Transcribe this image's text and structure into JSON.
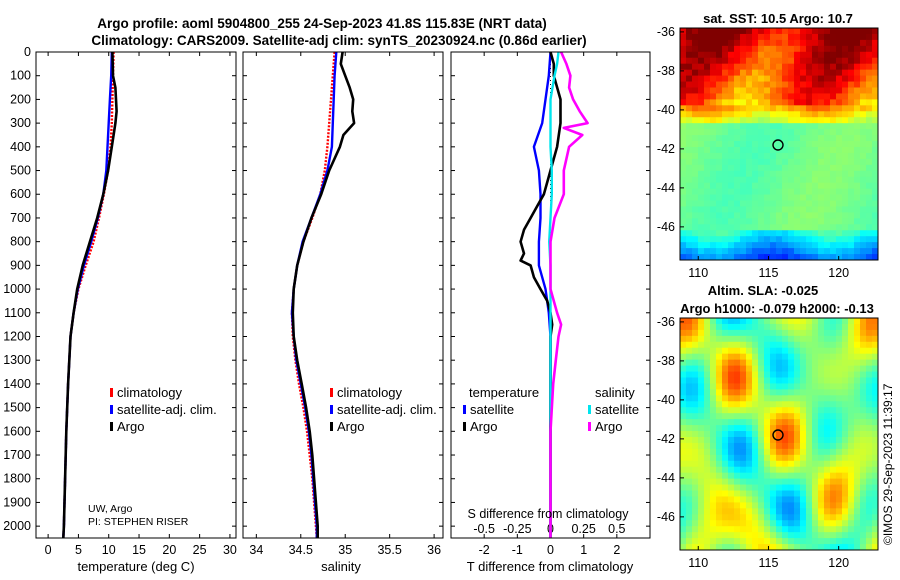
{
  "header": {
    "title_line1": "Argo profile: aoml 5904800_255 24-Sep-2023 41.8S 115.83E (NRT data)",
    "title_line2": "Climatology: CARS2009. Satellite-adj clim: synTS_20230924.nc (0.86d earlier)"
  },
  "colors": {
    "climatology": "#ff0000",
    "satellite": "#0000ff",
    "argo": "#000000",
    "sat_salinity": "#00e5ee",
    "argo_salinity": "#ff00ff"
  },
  "depth_axis": {
    "ticks": [
      "0",
      "100",
      "200",
      "300",
      "400",
      "500",
      "600",
      "700",
      "800",
      "900",
      "1000",
      "1100",
      "1200",
      "1300",
      "1400",
      "1500",
      "1600",
      "1700",
      "1800",
      "1900",
      "2000"
    ]
  },
  "credits": {
    "line1": "UW, Argo",
    "line2": "PI: STEPHEN RISER"
  },
  "timestamp": "©IMOS 29-Sep-2023 11:39:17",
  "chart_data": [
    {
      "type": "line",
      "id": "temperature",
      "xlabel": "temperature (deg C)",
      "xlim": [
        -2,
        31
      ],
      "ylim": [
        2050,
        0
      ],
      "xticks": [
        "0",
        "5",
        "10",
        "15",
        "20",
        "25",
        "30"
      ],
      "legend": [
        "climatology",
        "satellite-adj. clim.",
        "Argo"
      ],
      "series": [
        {
          "name": "climatology",
          "depth": [
            0,
            100,
            200,
            300,
            400,
            500,
            600,
            700,
            800,
            900,
            1000,
            1100,
            1200,
            1400,
            1600,
            1800,
            2000,
            2050
          ],
          "values": [
            10.8,
            10.7,
            10.6,
            10.5,
            10.3,
            9.9,
            9.2,
            8.4,
            7.5,
            6.2,
            5.0,
            4.2,
            3.7,
            3.3,
            3.0,
            2.8,
            2.6,
            2.5
          ]
        },
        {
          "name": "satellite-adj. clim.",
          "depth": [
            0,
            100,
            200,
            300,
            400,
            500,
            600,
            700,
            800,
            900,
            1000,
            1100,
            1200,
            1400,
            1600,
            1800,
            2000,
            2050
          ],
          "values": [
            10.5,
            10.4,
            10.2,
            10.0,
            9.8,
            9.6,
            9.1,
            8.2,
            7.1,
            5.9,
            4.9,
            4.2,
            3.7,
            3.3,
            3.0,
            2.8,
            2.6,
            2.5
          ]
        },
        {
          "name": "Argo",
          "depth": [
            0,
            100,
            150,
            200,
            250,
            300,
            350,
            400,
            500,
            600,
            700,
            800,
            900,
            1000,
            1100,
            1200,
            1400,
            1600,
            1800,
            2000,
            2050
          ],
          "values": [
            10.6,
            10.7,
            11.1,
            11.2,
            11.3,
            11.1,
            10.8,
            10.5,
            9.9,
            9.1,
            8.1,
            6.9,
            5.7,
            4.8,
            4.2,
            3.7,
            3.3,
            3.0,
            2.8,
            2.6,
            2.5
          ]
        }
      ]
    },
    {
      "type": "line",
      "id": "salinity",
      "xlabel": "salinity",
      "xlim": [
        33.85,
        36.1
      ],
      "ylim": [
        2050,
        0
      ],
      "xticks": [
        "34",
        "34.5",
        "35",
        "35.5",
        "36"
      ],
      "legend": [
        "climatology",
        "satellite-adj. clim.",
        "Argo"
      ],
      "series": [
        {
          "name": "climatology",
          "depth": [
            0,
            100,
            200,
            300,
            400,
            500,
            600,
            700,
            800,
            900,
            1000,
            1100,
            1200,
            1300,
            1400,
            1500,
            1600,
            1700,
            1800,
            1900,
            2000,
            2050
          ],
          "values": [
            34.88,
            34.86,
            34.84,
            34.82,
            34.8,
            34.77,
            34.72,
            34.63,
            34.53,
            34.46,
            34.42,
            34.4,
            34.41,
            34.44,
            34.48,
            34.53,
            34.57,
            34.6,
            34.63,
            34.65,
            34.67,
            34.68
          ]
        },
        {
          "name": "satellite-adj. clim.",
          "depth": [
            0,
            100,
            200,
            300,
            400,
            500,
            600,
            700,
            800,
            900,
            1000,
            1100,
            1200,
            1300,
            1400,
            1500,
            1600,
            1700,
            1800,
            1900,
            2000,
            2050
          ],
          "values": [
            34.9,
            34.88,
            34.87,
            34.86,
            34.85,
            34.8,
            34.72,
            34.62,
            34.52,
            34.46,
            34.42,
            34.4,
            34.42,
            34.45,
            34.5,
            34.55,
            34.59,
            34.62,
            34.64,
            34.66,
            34.68,
            34.68
          ]
        },
        {
          "name": "Argo",
          "depth": [
            0,
            50,
            100,
            150,
            200,
            250,
            300,
            350,
            400,
            500,
            600,
            700,
            800,
            900,
            1000,
            1100,
            1200,
            1300,
            1400,
            1500,
            1600,
            1700,
            1800,
            1900,
            2000,
            2050
          ],
          "values": [
            34.97,
            34.95,
            35.0,
            35.05,
            35.09,
            35.08,
            35.1,
            34.98,
            34.94,
            34.82,
            34.73,
            34.62,
            34.53,
            34.46,
            34.42,
            34.41,
            34.42,
            34.46,
            34.51,
            34.56,
            34.6,
            34.63,
            34.65,
            34.67,
            34.69,
            34.69
          ]
        }
      ]
    },
    {
      "type": "line",
      "id": "difference",
      "xlabel": "T difference from climatology",
      "xlabel_top": "S difference from climatology",
      "xlim": [
        -3,
        3
      ],
      "ylim": [
        2050,
        0
      ],
      "xticks": [
        "-2",
        "-1",
        "0",
        "1",
        "2"
      ],
      "xticks_top": [
        "-0.5",
        "-0.25",
        "0",
        "0.25",
        "0.5"
      ],
      "legend_temperature": {
        "title": "temperature",
        "items": [
          "satellite",
          "Argo"
        ]
      },
      "legend_salinity": {
        "title": "salinity",
        "items": [
          "satellite",
          "Argo"
        ]
      },
      "series": [
        {
          "name": "temperature satellite",
          "depth": [
            0,
            100,
            200,
            300,
            400,
            500,
            600,
            700,
            800,
            900,
            1000,
            1100,
            1200,
            1400,
            1600,
            1800,
            2000,
            2050
          ],
          "values": [
            0.0,
            -0.05,
            -0.15,
            -0.25,
            -0.5,
            -0.35,
            -0.3,
            -0.3,
            -0.35,
            -0.35,
            -0.15,
            -0.05,
            0.0,
            0.0,
            0.0,
            0.0,
            0.0,
            0.0
          ]
        },
        {
          "name": "temperature Argo",
          "depth": [
            0,
            50,
            100,
            200,
            300,
            400,
            500,
            600,
            650,
            700,
            750,
            800,
            850,
            880,
            900,
            950,
            1000,
            1050,
            1100,
            1150,
            1200,
            1300,
            1400,
            1600,
            1800,
            2000,
            2050
          ],
          "values": [
            0.0,
            0.1,
            0.1,
            0.3,
            0.3,
            0.2,
            0.0,
            -0.2,
            -0.4,
            -0.6,
            -0.8,
            -0.9,
            -0.8,
            -0.9,
            -0.6,
            -0.5,
            -0.3,
            -0.1,
            0.0,
            0.05,
            0.0,
            0.0,
            0.0,
            0.0,
            0.0,
            0.0,
            0.0
          ]
        },
        {
          "name": "salinity satellite",
          "depth": [
            0,
            50,
            100,
            200,
            300,
            400,
            500,
            600,
            700,
            800,
            900,
            1000,
            1100,
            1200,
            1400,
            1600,
            1800,
            2000,
            2050
          ],
          "values": [
            0.06,
            0.05,
            0.03,
            0.0,
            0.0,
            0.0,
            0.01,
            0.01,
            0.0,
            -0.01,
            0.0,
            0.0,
            0.0,
            0.0,
            0.0,
            0.0,
            0.0,
            0.0,
            0.0
          ]
        },
        {
          "name": "salinity Argo",
          "depth": [
            0,
            50,
            100,
            150,
            200,
            250,
            300,
            320,
            350,
            400,
            500,
            600,
            700,
            800,
            900,
            1000,
            1100,
            1150,
            1200,
            1300,
            1400,
            1600,
            1800,
            2000,
            2050
          ],
          "values": [
            0.08,
            0.12,
            0.15,
            0.14,
            0.17,
            0.22,
            0.28,
            0.1,
            0.24,
            0.14,
            0.1,
            0.1,
            0.03,
            0.0,
            0.0,
            0.0,
            0.05,
            0.08,
            0.06,
            0.04,
            0.02,
            0.0,
            0.0,
            0.0,
            0.0
          ]
        }
      ]
    },
    {
      "type": "heatmap",
      "id": "sst_map",
      "title": "sat. SST: 10.5 Argo: 10.7",
      "xticks": [
        "110",
        "115",
        "120"
      ],
      "yticks": [
        "-36",
        "-38",
        "-40",
        "-42",
        "-44",
        "-46"
      ],
      "xlim": [
        108.7,
        122.8
      ],
      "ylim": [
        -47.7,
        -35.8
      ],
      "marker": {
        "lon": 115.83,
        "lat": -41.8
      }
    },
    {
      "type": "heatmap",
      "id": "sla_map",
      "title_line1": "Altim. SLA: -0.025",
      "title_line2": "Argo h1000: -0.079 h2000: -0.13",
      "xticks": [
        "110",
        "115",
        "120"
      ],
      "yticks": [
        "-36",
        "-38",
        "-40",
        "-42",
        "-44",
        "-46"
      ],
      "xlim": [
        108.7,
        122.8
      ],
      "ylim": [
        -47.7,
        -35.8
      ],
      "marker": {
        "lon": 115.83,
        "lat": -41.8
      }
    }
  ]
}
